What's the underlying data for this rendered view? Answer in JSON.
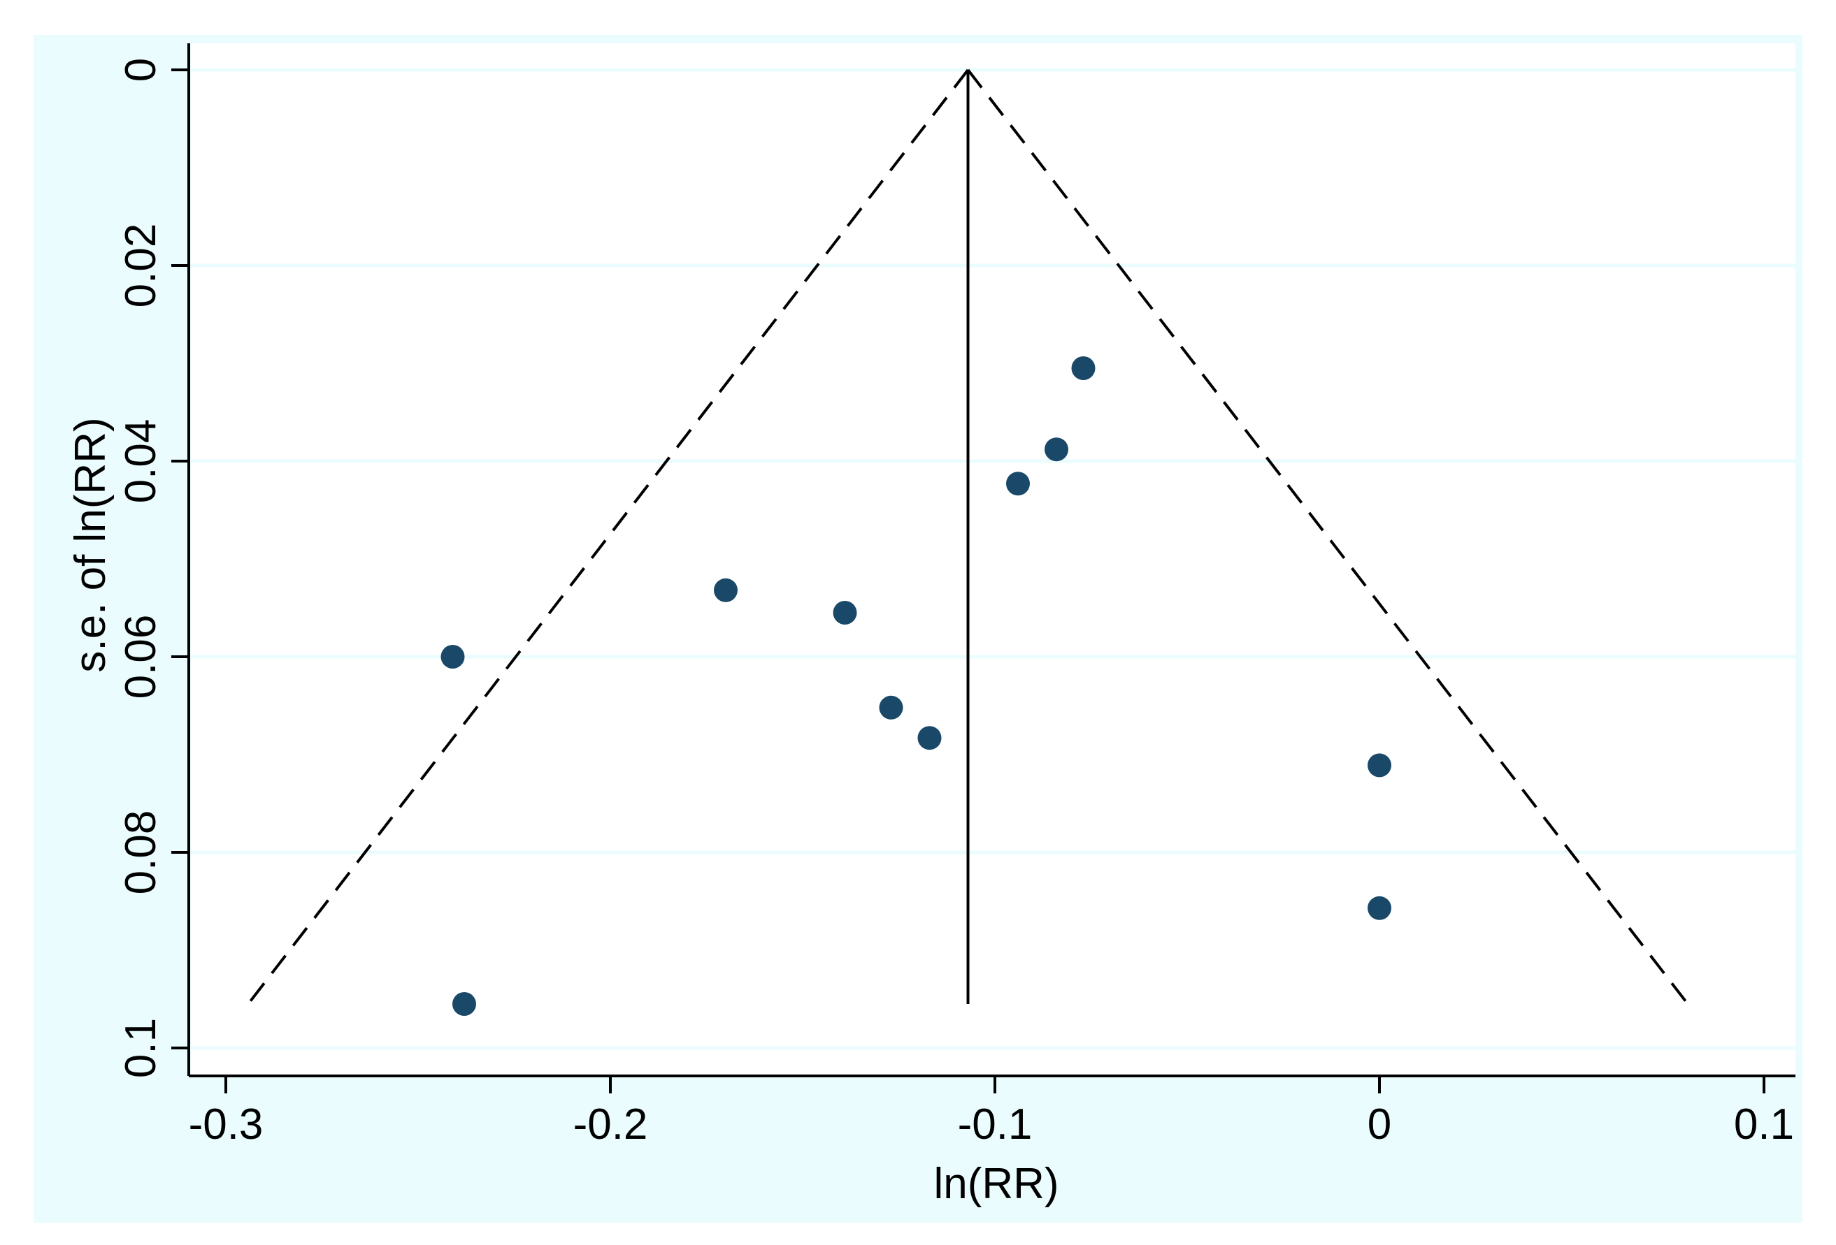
{
  "colors": {
    "outer_background": "#eafcfd",
    "plot_background": "#ffffff",
    "gridline": "#eafcfd",
    "axis": "#000000",
    "marker": "#1a4868",
    "pseudo_ci": "#000000",
    "pooled_line": "#000000"
  },
  "chart_data": {
    "type": "scatter",
    "subtype": "funnel",
    "title": "",
    "xlabel": "ln(RR)",
    "ylabel": "s.e. of ln(RR)",
    "xlim": [
      -0.3,
      0.1
    ],
    "ylim": [
      0,
      0.1
    ],
    "y_reversed": true,
    "grid": {
      "horizontal": true,
      "vertical": false
    },
    "legend": "none",
    "x_ticks": [
      -0.3,
      -0.2,
      -0.1,
      0,
      0.1
    ],
    "x_tick_labels": [
      "-0.3",
      "-0.2",
      "-0.1",
      "0",
      "0.1"
    ],
    "y_ticks": [
      0,
      0.02,
      0.04,
      0.06,
      0.08,
      0.1
    ],
    "y_tick_labels": [
      "0",
      "0.02",
      "0.04",
      "0.06",
      "0.08",
      "0.1"
    ],
    "pooled_estimate": -0.107,
    "max_se": 0.0955,
    "points": [
      {
        "x": -0.077,
        "y": 0.0305
      },
      {
        "x": -0.084,
        "y": 0.0388
      },
      {
        "x": -0.094,
        "y": 0.0423
      },
      {
        "x": -0.17,
        "y": 0.0532
      },
      {
        "x": -0.139,
        "y": 0.0555
      },
      {
        "x": -0.241,
        "y": 0.06
      },
      {
        "x": -0.127,
        "y": 0.0652
      },
      {
        "x": -0.117,
        "y": 0.0683
      },
      {
        "x": 0.0,
        "y": 0.0711
      },
      {
        "x": 0.0,
        "y": 0.0857
      },
      {
        "x": -0.238,
        "y": 0.0955
      }
    ]
  }
}
